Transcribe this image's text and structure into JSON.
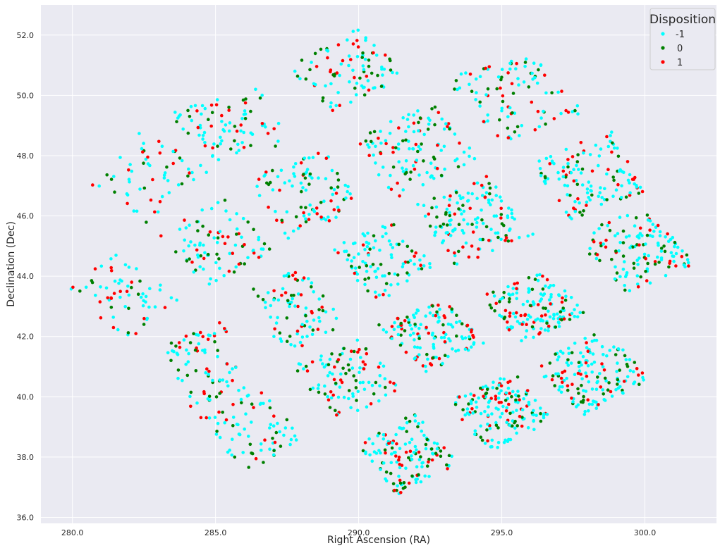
{
  "chart_data": {
    "type": "scatter",
    "title": "",
    "xlabel": "Right Ascension (RA)",
    "ylabel": "Declination (Dec)",
    "xlim": [
      278.9,
      302.5
    ],
    "ylim": [
      35.8,
      53.0
    ],
    "xticks": [
      "280.0",
      "285.0",
      "290.0",
      "295.0",
      "300.0"
    ],
    "yticks": [
      "36.0",
      "38.0",
      "40.0",
      "42.0",
      "44.0",
      "46.0",
      "48.0",
      "50.0",
      "52.0"
    ],
    "xtick_values": [
      280,
      285,
      290,
      295,
      300
    ],
    "ytick_values": [
      36,
      38,
      40,
      42,
      44,
      46,
      48,
      50,
      52
    ],
    "grid": true,
    "background": "#eaeaf2",
    "legend": {
      "title": "Disposition",
      "placement": "top-right",
      "entries": [
        {
          "label": "-1",
          "color": "#00ffff"
        },
        {
          "label": "0",
          "color": "#008000"
        },
        {
          "label": "1",
          "color": "#ff0000"
        }
      ]
    },
    "series": [
      {
        "name": "-1",
        "color": "#00ffff",
        "weight": 0.55
      },
      {
        "name": "0",
        "color": "#008000",
        "weight": 0.25
      },
      {
        "name": "1",
        "color": "#ff0000",
        "weight": 0.2
      }
    ],
    "point_generation": "approximately 40 uniformly scattered points per module (pseudo-random, deterministic seed); modules are parallelograms described by their four corners in (RA, Dec)",
    "modules": [
      {
        "corners": [
          [
            280.6,
            47.1
          ],
          [
            282.6,
            49.0
          ],
          [
            284.8,
            47.5
          ],
          [
            282.4,
            45.6
          ]
        ],
        "n": 60
      },
      {
        "corners": [
          [
            283.3,
            49.4
          ],
          [
            286.5,
            50.3
          ],
          [
            287.6,
            48.4
          ],
          [
            285.0,
            47.8
          ]
        ],
        "n": 85
      },
      {
        "corners": [
          [
            287.2,
            51.1
          ],
          [
            290.2,
            52.3
          ],
          [
            291.6,
            50.6
          ],
          [
            289.0,
            49.4
          ]
        ],
        "n": 95
      },
      {
        "corners": [
          [
            292.8,
            50.5
          ],
          [
            296.0,
            51.4
          ],
          [
            297.9,
            49.4
          ],
          [
            295.0,
            48.4
          ]
        ],
        "n": 100
      },
      {
        "corners": [
          [
            279.9,
            43.6
          ],
          [
            281.5,
            44.9
          ],
          [
            283.8,
            43.3
          ],
          [
            281.9,
            41.8
          ]
        ],
        "n": 65
      },
      {
        "corners": [
          [
            282.9,
            45.3
          ],
          [
            285.4,
            46.7
          ],
          [
            287.1,
            44.8
          ],
          [
            284.7,
            43.7
          ]
        ],
        "n": 90
      },
      {
        "corners": [
          [
            286.0,
            47.2
          ],
          [
            288.9,
            48.2
          ],
          [
            290.3,
            46.4
          ],
          [
            287.5,
            45.2
          ]
        ],
        "n": 100
      },
      {
        "corners": [
          [
            289.7,
            48.6
          ],
          [
            292.6,
            49.7
          ],
          [
            294.3,
            47.9
          ],
          [
            291.3,
            46.6
          ]
        ],
        "n": 120
      },
      {
        "corners": [
          [
            296.0,
            47.7
          ],
          [
            298.8,
            48.9
          ],
          [
            300.0,
            46.8
          ],
          [
            297.4,
            45.8
          ]
        ],
        "n": 130
      },
      {
        "corners": [
          [
            283.2,
            41.7
          ],
          [
            285.3,
            42.6
          ],
          [
            286.1,
            40.3
          ],
          [
            284.1,
            39.6
          ]
        ],
        "n": 80
      },
      {
        "corners": [
          [
            286.3,
            43.6
          ],
          [
            288.1,
            44.4
          ],
          [
            289.5,
            42.4
          ],
          [
            287.3,
            41.3
          ]
        ],
        "n": 85
      },
      {
        "corners": [
          [
            289.0,
            45.0
          ],
          [
            291.2,
            45.8
          ],
          [
            292.8,
            44.2
          ],
          [
            290.6,
            43.1
          ]
        ],
        "n": 100
      },
      {
        "corners": [
          [
            292.0,
            46.4
          ],
          [
            294.5,
            47.4
          ],
          [
            296.2,
            45.4
          ],
          [
            293.3,
            44.3
          ]
        ],
        "n": 140
      },
      {
        "corners": [
          [
            297.5,
            45.3
          ],
          [
            299.8,
            46.3
          ],
          [
            301.9,
            44.5
          ],
          [
            299.4,
            43.4
          ]
        ],
        "n": 135
      },
      {
        "corners": [
          [
            284.4,
            39.3
          ],
          [
            286.7,
            40.3
          ],
          [
            288.0,
            38.6
          ],
          [
            286.1,
            37.4
          ]
        ],
        "n": 75
      },
      {
        "corners": [
          [
            287.5,
            41.0
          ],
          [
            289.8,
            42.1
          ],
          [
            291.6,
            40.3
          ],
          [
            289.4,
            39.2
          ]
        ],
        "n": 105
      },
      {
        "corners": [
          [
            290.6,
            42.4
          ],
          [
            293.0,
            43.2
          ],
          [
            294.4,
            41.8
          ],
          [
            292.4,
            40.8
          ]
        ],
        "n": 140
      },
      {
        "corners": [
          [
            294.2,
            43.3
          ],
          [
            296.5,
            44.2
          ],
          [
            298.0,
            42.8
          ],
          [
            295.7,
            41.7
          ]
        ],
        "n": 150
      },
      {
        "corners": [
          [
            290.0,
            38.4
          ],
          [
            292.0,
            39.5
          ],
          [
            293.5,
            37.8
          ],
          [
            291.3,
            36.7
          ]
        ],
        "n": 140
      },
      {
        "corners": [
          [
            293.0,
            39.8
          ],
          [
            295.4,
            40.9
          ],
          [
            296.8,
            39.2
          ],
          [
            294.6,
            38.2
          ]
        ],
        "n": 160
      },
      {
        "corners": [
          [
            296.1,
            41.0
          ],
          [
            298.5,
            42.3
          ],
          [
            300.2,
            40.6
          ],
          [
            297.9,
            39.4
          ]
        ],
        "n": 160
      }
    ]
  }
}
